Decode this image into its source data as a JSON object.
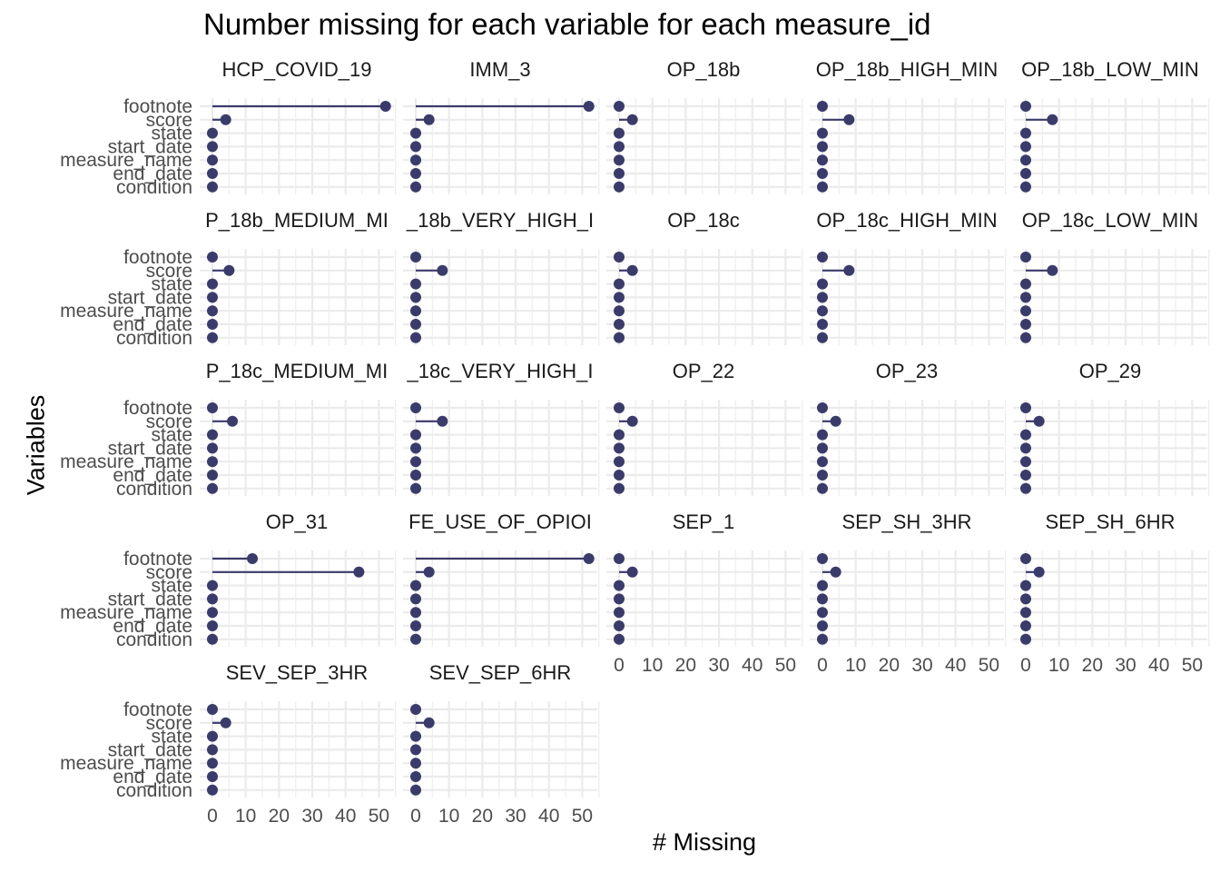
{
  "chart_data": {
    "type": "lollipop-facets",
    "title": "Number missing for each variable for each measure_id",
    "xlabel": "# Missing",
    "ylabel": "Variables",
    "xlim": [
      0,
      55
    ],
    "x_ticks": [
      "0",
      "10",
      "20",
      "30",
      "40",
      "50"
    ],
    "x_tick_values": [
      0,
      10,
      20,
      30,
      40,
      50
    ],
    "variables": [
      "footnote",
      "score",
      "state",
      "start_date",
      "measure_name",
      "end_date",
      "condition"
    ],
    "grid": true,
    "series_color": "#3b3b6b",
    "facets": [
      {
        "label": "HCP_COVID_19",
        "values": [
          52,
          4,
          0,
          0,
          0,
          0,
          0
        ]
      },
      {
        "label": "IMM_3",
        "values": [
          52,
          4,
          0,
          0,
          0,
          0,
          0
        ]
      },
      {
        "label": "OP_18b",
        "values": [
          0,
          4,
          0,
          0,
          0,
          0,
          0
        ]
      },
      {
        "label": "OP_18b_HIGH_MIN",
        "values": [
          0,
          8,
          0,
          0,
          0,
          0,
          0
        ]
      },
      {
        "label": "OP_18b_LOW_MIN",
        "values": [
          0,
          8,
          0,
          0,
          0,
          0,
          0
        ]
      },
      {
        "label": "P_18b_MEDIUM_MI",
        "values": [
          0,
          5,
          0,
          0,
          0,
          0,
          0
        ]
      },
      {
        "label": "_18b_VERY_HIGH_I",
        "values": [
          0,
          8,
          0,
          0,
          0,
          0,
          0
        ]
      },
      {
        "label": "OP_18c",
        "values": [
          0,
          4,
          0,
          0,
          0,
          0,
          0
        ]
      },
      {
        "label": "OP_18c_HIGH_MIN",
        "values": [
          0,
          8,
          0,
          0,
          0,
          0,
          0
        ]
      },
      {
        "label": "OP_18c_LOW_MIN",
        "values": [
          0,
          8,
          0,
          0,
          0,
          0,
          0
        ]
      },
      {
        "label": "P_18c_MEDIUM_MI",
        "values": [
          0,
          6,
          0,
          0,
          0,
          0,
          0
        ]
      },
      {
        "label": "_18c_VERY_HIGH_I",
        "values": [
          0,
          8,
          0,
          0,
          0,
          0,
          0
        ]
      },
      {
        "label": "OP_22",
        "values": [
          0,
          4,
          0,
          0,
          0,
          0,
          0
        ]
      },
      {
        "label": "OP_23",
        "values": [
          0,
          4,
          0,
          0,
          0,
          0,
          0
        ]
      },
      {
        "label": "OP_29",
        "values": [
          0,
          4,
          0,
          0,
          0,
          0,
          0
        ]
      },
      {
        "label": "OP_31",
        "values": [
          12,
          44,
          0,
          0,
          0,
          0,
          0
        ]
      },
      {
        "label": "FE_USE_OF_OPIOI",
        "values": [
          52,
          4,
          0,
          0,
          0,
          0,
          0
        ]
      },
      {
        "label": "SEP_1",
        "values": [
          0,
          4,
          0,
          0,
          0,
          0,
          0
        ]
      },
      {
        "label": "SEP_SH_3HR",
        "values": [
          0,
          4,
          0,
          0,
          0,
          0,
          0
        ]
      },
      {
        "label": "SEP_SH_6HR",
        "values": [
          0,
          4,
          0,
          0,
          0,
          0,
          0
        ]
      },
      {
        "label": "SEV_SEP_3HR",
        "values": [
          0,
          4,
          0,
          0,
          0,
          0,
          0
        ]
      },
      {
        "label": "SEV_SEP_6HR",
        "values": [
          0,
          4,
          0,
          0,
          0,
          0,
          0
        ]
      }
    ]
  }
}
